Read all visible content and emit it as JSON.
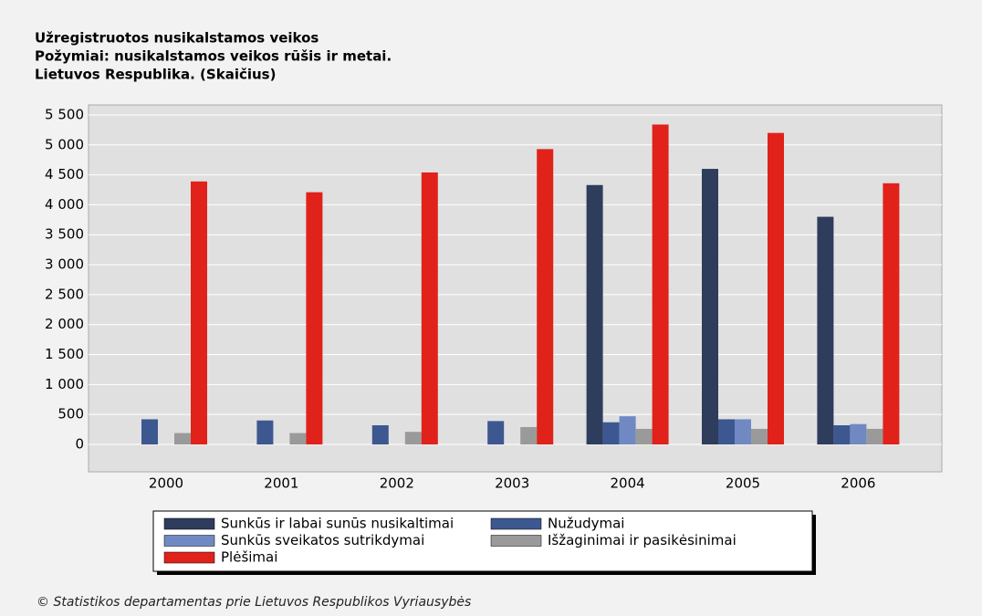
{
  "chart_data": {
    "type": "bar",
    "title": [
      "Užregistruotos nusikalstamos veikos",
      "Požymiai: nusikalstamos veikos rūšis ir metai.",
      "Lietuvos Respublika. (Skaičius)"
    ],
    "categories": [
      "2000",
      "2001",
      "2002",
      "2003",
      "2004",
      "2005",
      "2006"
    ],
    "series": [
      {
        "name": "Sunkūs ir labai sunūs nusikaltimai",
        "color": "#2e3d5c",
        "values": [
          null,
          null,
          null,
          null,
          4330,
          4600,
          3800
        ]
      },
      {
        "name": "Nužudymai",
        "color": "#3d5890",
        "values": [
          420,
          400,
          320,
          390,
          370,
          420,
          320
        ]
      },
      {
        "name": "Sunkūs sveikatos sutrikdymai",
        "color": "#7189c2",
        "values": [
          null,
          null,
          null,
          null,
          470,
          420,
          340
        ]
      },
      {
        "name": "Išžaginimai ir pasikėsinimai",
        "color": "#9a9a9a",
        "values": [
          190,
          190,
          210,
          290,
          260,
          260,
          260
        ]
      },
      {
        "name": "Plėšimai",
        "color": "#e0221b",
        "values": [
          4390,
          4210,
          4540,
          4930,
          5340,
          5200,
          4360
        ]
      }
    ],
    "ylim": [
      -457,
      5667
    ],
    "yticks": [
      0,
      500,
      {
        "value": 1000,
        "label": "1 000"
      },
      {
        "value": 1500,
        "label": "1 500"
      },
      {
        "value": 2000,
        "label": "2 000"
      },
      {
        "value": 2500,
        "label": "2 500"
      },
      {
        "value": 3000,
        "label": "3 000"
      },
      {
        "value": 3500,
        "label": "3 500"
      },
      {
        "value": 4000,
        "label": "4 000"
      },
      {
        "value": 4500,
        "label": "4 500"
      },
      {
        "value": 5000,
        "label": "5 000"
      },
      {
        "value": 5500,
        "label": "5 500"
      }
    ],
    "grid": true,
    "source": "© Statistikos departamentas prie Lietuvos Respublikos Vyriausybės"
  }
}
